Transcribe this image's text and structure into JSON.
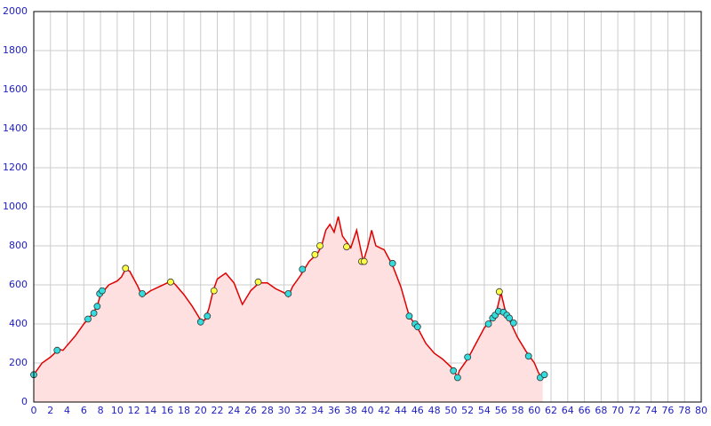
{
  "chart_data": {
    "type": "line",
    "x": [
      0,
      1,
      2,
      3,
      3.5,
      4,
      5,
      6,
      7,
      7.6,
      8,
      9,
      10,
      10.5,
      11,
      11.5,
      12,
      12.5,
      13,
      14,
      15,
      16,
      16.5,
      17,
      18,
      19,
      20,
      20.5,
      21,
      21.5,
      22,
      23,
      24,
      25,
      26,
      27,
      28,
      29,
      30,
      30.5,
      31,
      32,
      33,
      34,
      34.5,
      35,
      35.5,
      36,
      36.5,
      37,
      38,
      38.7,
      39.5,
      40,
      40.5,
      41,
      42,
      43,
      44,
      45,
      46,
      47,
      48,
      49,
      50,
      50.8,
      51,
      52,
      53,
      54,
      55,
      55.5,
      56,
      56.5,
      57,
      58,
      59,
      60,
      60.5,
      61
    ],
    "values": [
      140,
      200,
      230,
      270,
      265,
      290,
      340,
      400,
      450,
      490,
      550,
      600,
      620,
      640,
      680,
      670,
      630,
      590,
      540,
      570,
      590,
      610,
      620,
      600,
      550,
      490,
      420,
      420,
      480,
      570,
      630,
      660,
      610,
      500,
      570,
      610,
      610,
      580,
      560,
      540,
      590,
      650,
      720,
      760,
      800,
      880,
      910,
      870,
      950,
      850,
      790,
      880,
      720,
      790,
      880,
      800,
      780,
      700,
      590,
      440,
      380,
      300,
      250,
      220,
      180,
      130,
      160,
      220,
      300,
      380,
      430,
      470,
      560,
      470,
      420,
      330,
      260,
      200,
      150,
      120
    ],
    "color": "#e00000",
    "fill": "#ffe0e0",
    "markers": [
      {
        "color": "#33dddd",
        "x": [
          0,
          2.8,
          6.5,
          7.2,
          7.6,
          7.9,
          8.2,
          13,
          20,
          20.8,
          30.5,
          32.2,
          43,
          45,
          45.7,
          46,
          50.3,
          50.8,
          52,
          54.5,
          55,
          55.3,
          55.7,
          56.3,
          56.7,
          57,
          57.5,
          59.3,
          60.7,
          61.2
        ],
        "values": [
          140,
          265,
          425,
          455,
          490,
          555,
          570,
          555,
          410,
          440,
          555,
          680,
          710,
          440,
          400,
          385,
          160,
          125,
          230,
          400,
          430,
          445,
          465,
          460,
          445,
          430,
          405,
          235,
          125,
          140
        ]
      },
      {
        "color": "#ffff44",
        "x": [
          11,
          16.4,
          21.6,
          26.9,
          33.7,
          34.3,
          37.5,
          39.3,
          39.6,
          55.8
        ],
        "values": [
          685,
          615,
          570,
          615,
          755,
          800,
          795,
          720,
          720,
          565
        ]
      }
    ],
    "xlim": [
      0,
      80
    ],
    "xticks": [
      0,
      2,
      4,
      6,
      8,
      10,
      12,
      14,
      16,
      18,
      20,
      22,
      24,
      26,
      28,
      30,
      32,
      34,
      36,
      38,
      40,
      42,
      44,
      46,
      48,
      50,
      52,
      54,
      56,
      58,
      60,
      62,
      64,
      66,
      68,
      70,
      72,
      74,
      76,
      78,
      80
    ],
    "ylim": [
      0,
      2000
    ],
    "yticks": [
      0,
      200,
      400,
      600,
      800,
      1000,
      1200,
      1400,
      1600,
      1800,
      2000
    ],
    "grid": true
  }
}
